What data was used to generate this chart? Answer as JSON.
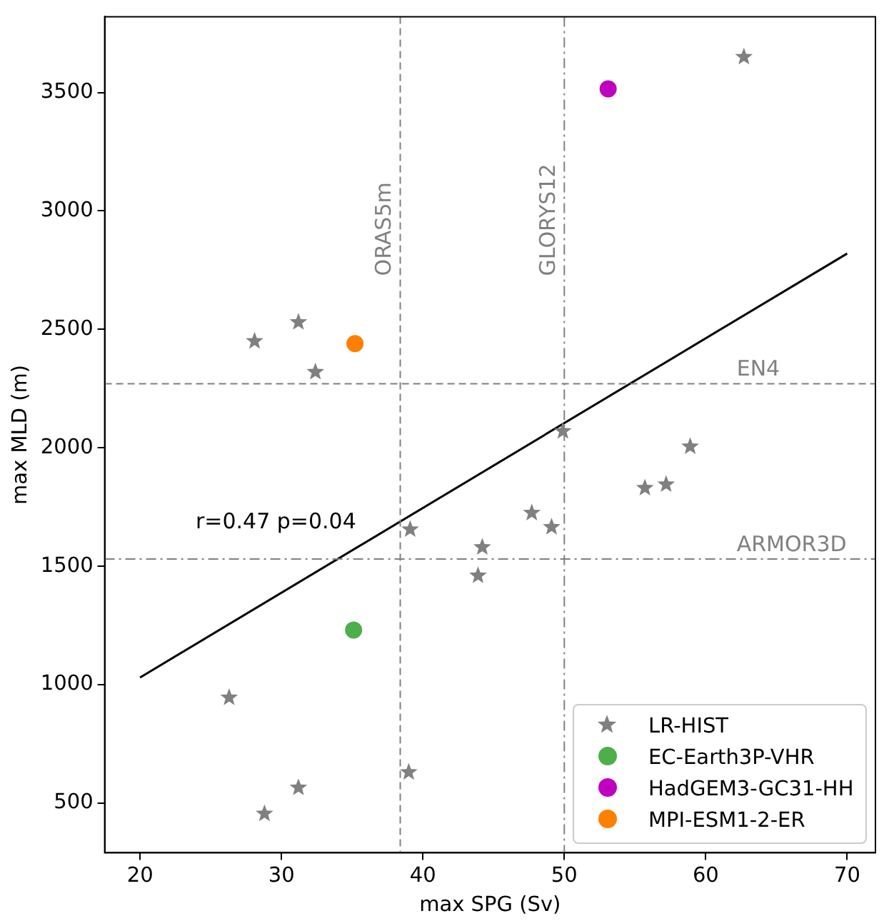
{
  "chart_data": {
    "type": "scatter",
    "xlabel": "max SPG (Sv)",
    "ylabel": "max MLD (m)",
    "xlim": [
      17.5,
      72
    ],
    "ylim": [
      290,
      3820
    ],
    "xticks": [
      20,
      30,
      40,
      50,
      60,
      70
    ],
    "yticks": [
      500,
      1000,
      1500,
      2000,
      2500,
      3000,
      3500
    ],
    "grid": false,
    "legend": "bottom right",
    "series": [
      {
        "name": "LR-HIST",
        "color": "#808080",
        "marker": "star",
        "x": [
          28.1,
          31.2,
          32.4,
          62.7,
          49.9,
          58.9,
          55.7,
          57.2,
          47.7,
          49.1,
          39.1,
          44.2,
          43.9,
          26.3,
          39.0,
          31.2,
          28.8
        ],
        "values": [
          2450,
          2530,
          2320,
          3650,
          2070,
          2005,
          1830,
          1845,
          1725,
          1665,
          1655,
          1580,
          1460,
          945,
          630,
          565,
          455
        ]
      },
      {
        "name": "EC-Earth3P-VHR",
        "color": "#4daf4a",
        "marker": "circle",
        "x": [
          35.1
        ],
        "values": [
          1230
        ]
      },
      {
        "name": "HadGEM3-GC31-HH",
        "color": "#c000c0",
        "marker": "circle",
        "x": [
          53.1
        ],
        "values": [
          3515
        ]
      },
      {
        "name": "MPI-ESM1-2-ER",
        "color": "#ff7f00",
        "marker": "circle",
        "x": [
          35.2
        ],
        "values": [
          2440
        ]
      },
      {
        "type": "line",
        "color": "#000000",
        "marker": "none",
        "line_style": "solid",
        "x": [
          20,
          70
        ],
        "values": [
          1030,
          2820
        ]
      }
    ],
    "ref_lines": [
      {
        "axis": "x",
        "value": 38.4,
        "label": "ORAS5m",
        "color": "#808080",
        "line_style": "dashed"
      },
      {
        "axis": "x",
        "value": 50.0,
        "label": "GLORYS12",
        "color": "#808080",
        "line_style": "dashdot"
      },
      {
        "axis": "y",
        "value": 2270,
        "label": "EN4",
        "color": "#808080",
        "line_style": "dashed"
      },
      {
        "axis": "y",
        "value": 1530,
        "label": "ARMOR3D",
        "color": "#808080",
        "line_style": "dashdot"
      }
    ],
    "annotations": [
      "r=0.47 p=0.04"
    ]
  }
}
